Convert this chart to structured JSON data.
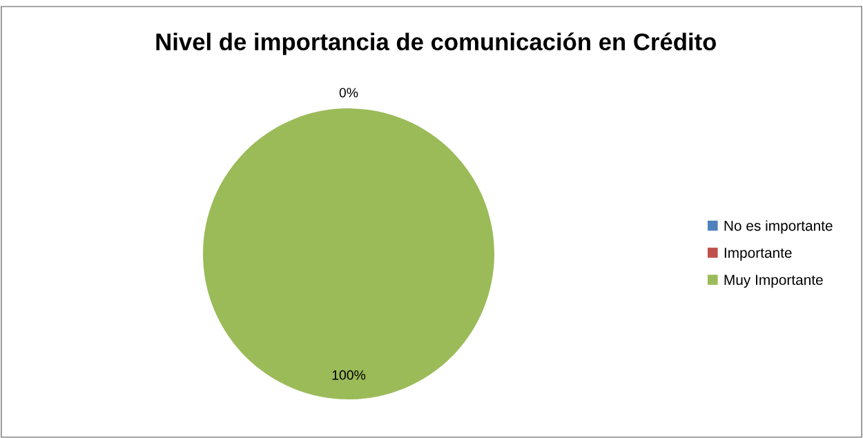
{
  "chart_data": {
    "type": "pie",
    "title": "Nivel de importancia de comunicación en Crédito",
    "categories": [
      "No es importante",
      "Importante",
      "Muy Importante"
    ],
    "values": [
      0,
      0,
      100
    ],
    "colors": [
      "#4f81bd",
      "#c0504d",
      "#9bbb59"
    ],
    "value_labels": [
      "0%",
      null,
      "100%"
    ],
    "legend": "right"
  }
}
